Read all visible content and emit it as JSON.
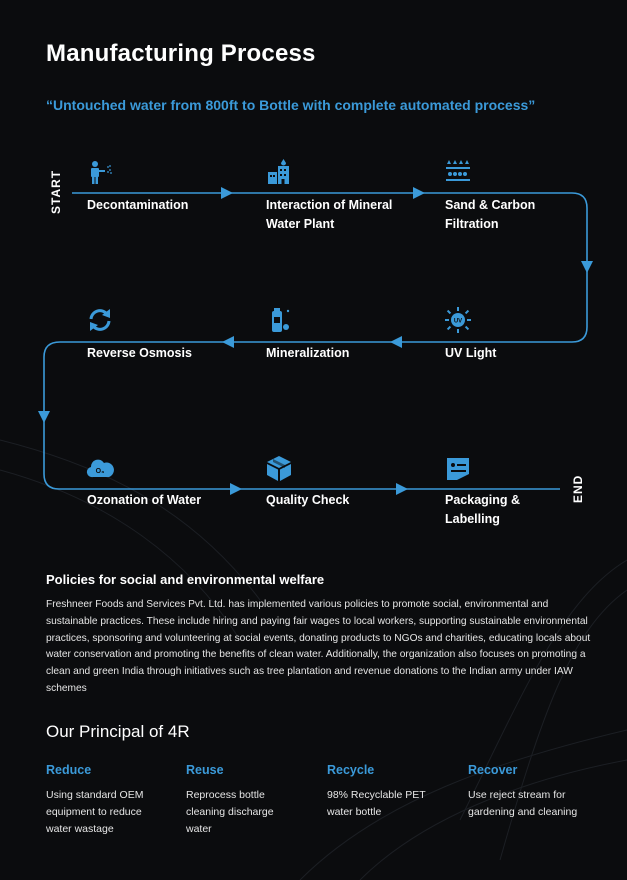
{
  "header": {
    "title": "Manufacturing Process",
    "tagline": "“Untouched water from 800ft to Bottle with complete automated process”"
  },
  "process": {
    "start_label": "START",
    "end_label": "END",
    "steps": [
      {
        "label": "Decontamination",
        "icon": "worker-spraying-icon"
      },
      {
        "label": "Interaction of Mineral Water Plant",
        "icon": "water-plant-building-icon"
      },
      {
        "label": "Sand & Carbon Filtration",
        "icon": "filtration-icon"
      },
      {
        "label": "UV Light",
        "icon": "uv-sun-icon"
      },
      {
        "label": "Mineralization",
        "icon": "mineral-bottle-icon"
      },
      {
        "label": "Reverse Osmosis",
        "icon": "recycle-arrows-icon"
      },
      {
        "label": "Ozonation of Water",
        "icon": "ozone-cloud-icon"
      },
      {
        "label": "Quality Check",
        "icon": "box-icon"
      },
      {
        "label": "Packaging & Labelling",
        "icon": "label-tag-icon"
      }
    ],
    "accent_color": "#3b9ad9"
  },
  "policies": {
    "title": "Policies for social and environmental welfare",
    "text": "Freshneer Foods and Services Pvt. Ltd. has implemented various policies to promote social, environmental and sustainable practices. These include hiring and paying fair wages to local workers, supporting sustainable environmental practices, sponsoring and volunteering at social events, donating products to NGOs and charities, educating locals about water conservation and promoting the benefits of clean water. Additionally, the organization also focuses on promoting a clean and green India through initiatives such as tree plantation and revenue donations to the Indian army under IAW schemes"
  },
  "principal": {
    "title": "Our Principal of 4R",
    "items": [
      {
        "title": "Reduce",
        "text": "Using standard OEM equipment to reduce water wastage"
      },
      {
        "title": "Reuse",
        "text": "Reprocess bottle cleaning discharge water"
      },
      {
        "title": "Recycle",
        "text": "98% Recyclable PET water bottle"
      },
      {
        "title": "Recover",
        "text": "Use reject stream for gardening and cleaning"
      }
    ]
  }
}
